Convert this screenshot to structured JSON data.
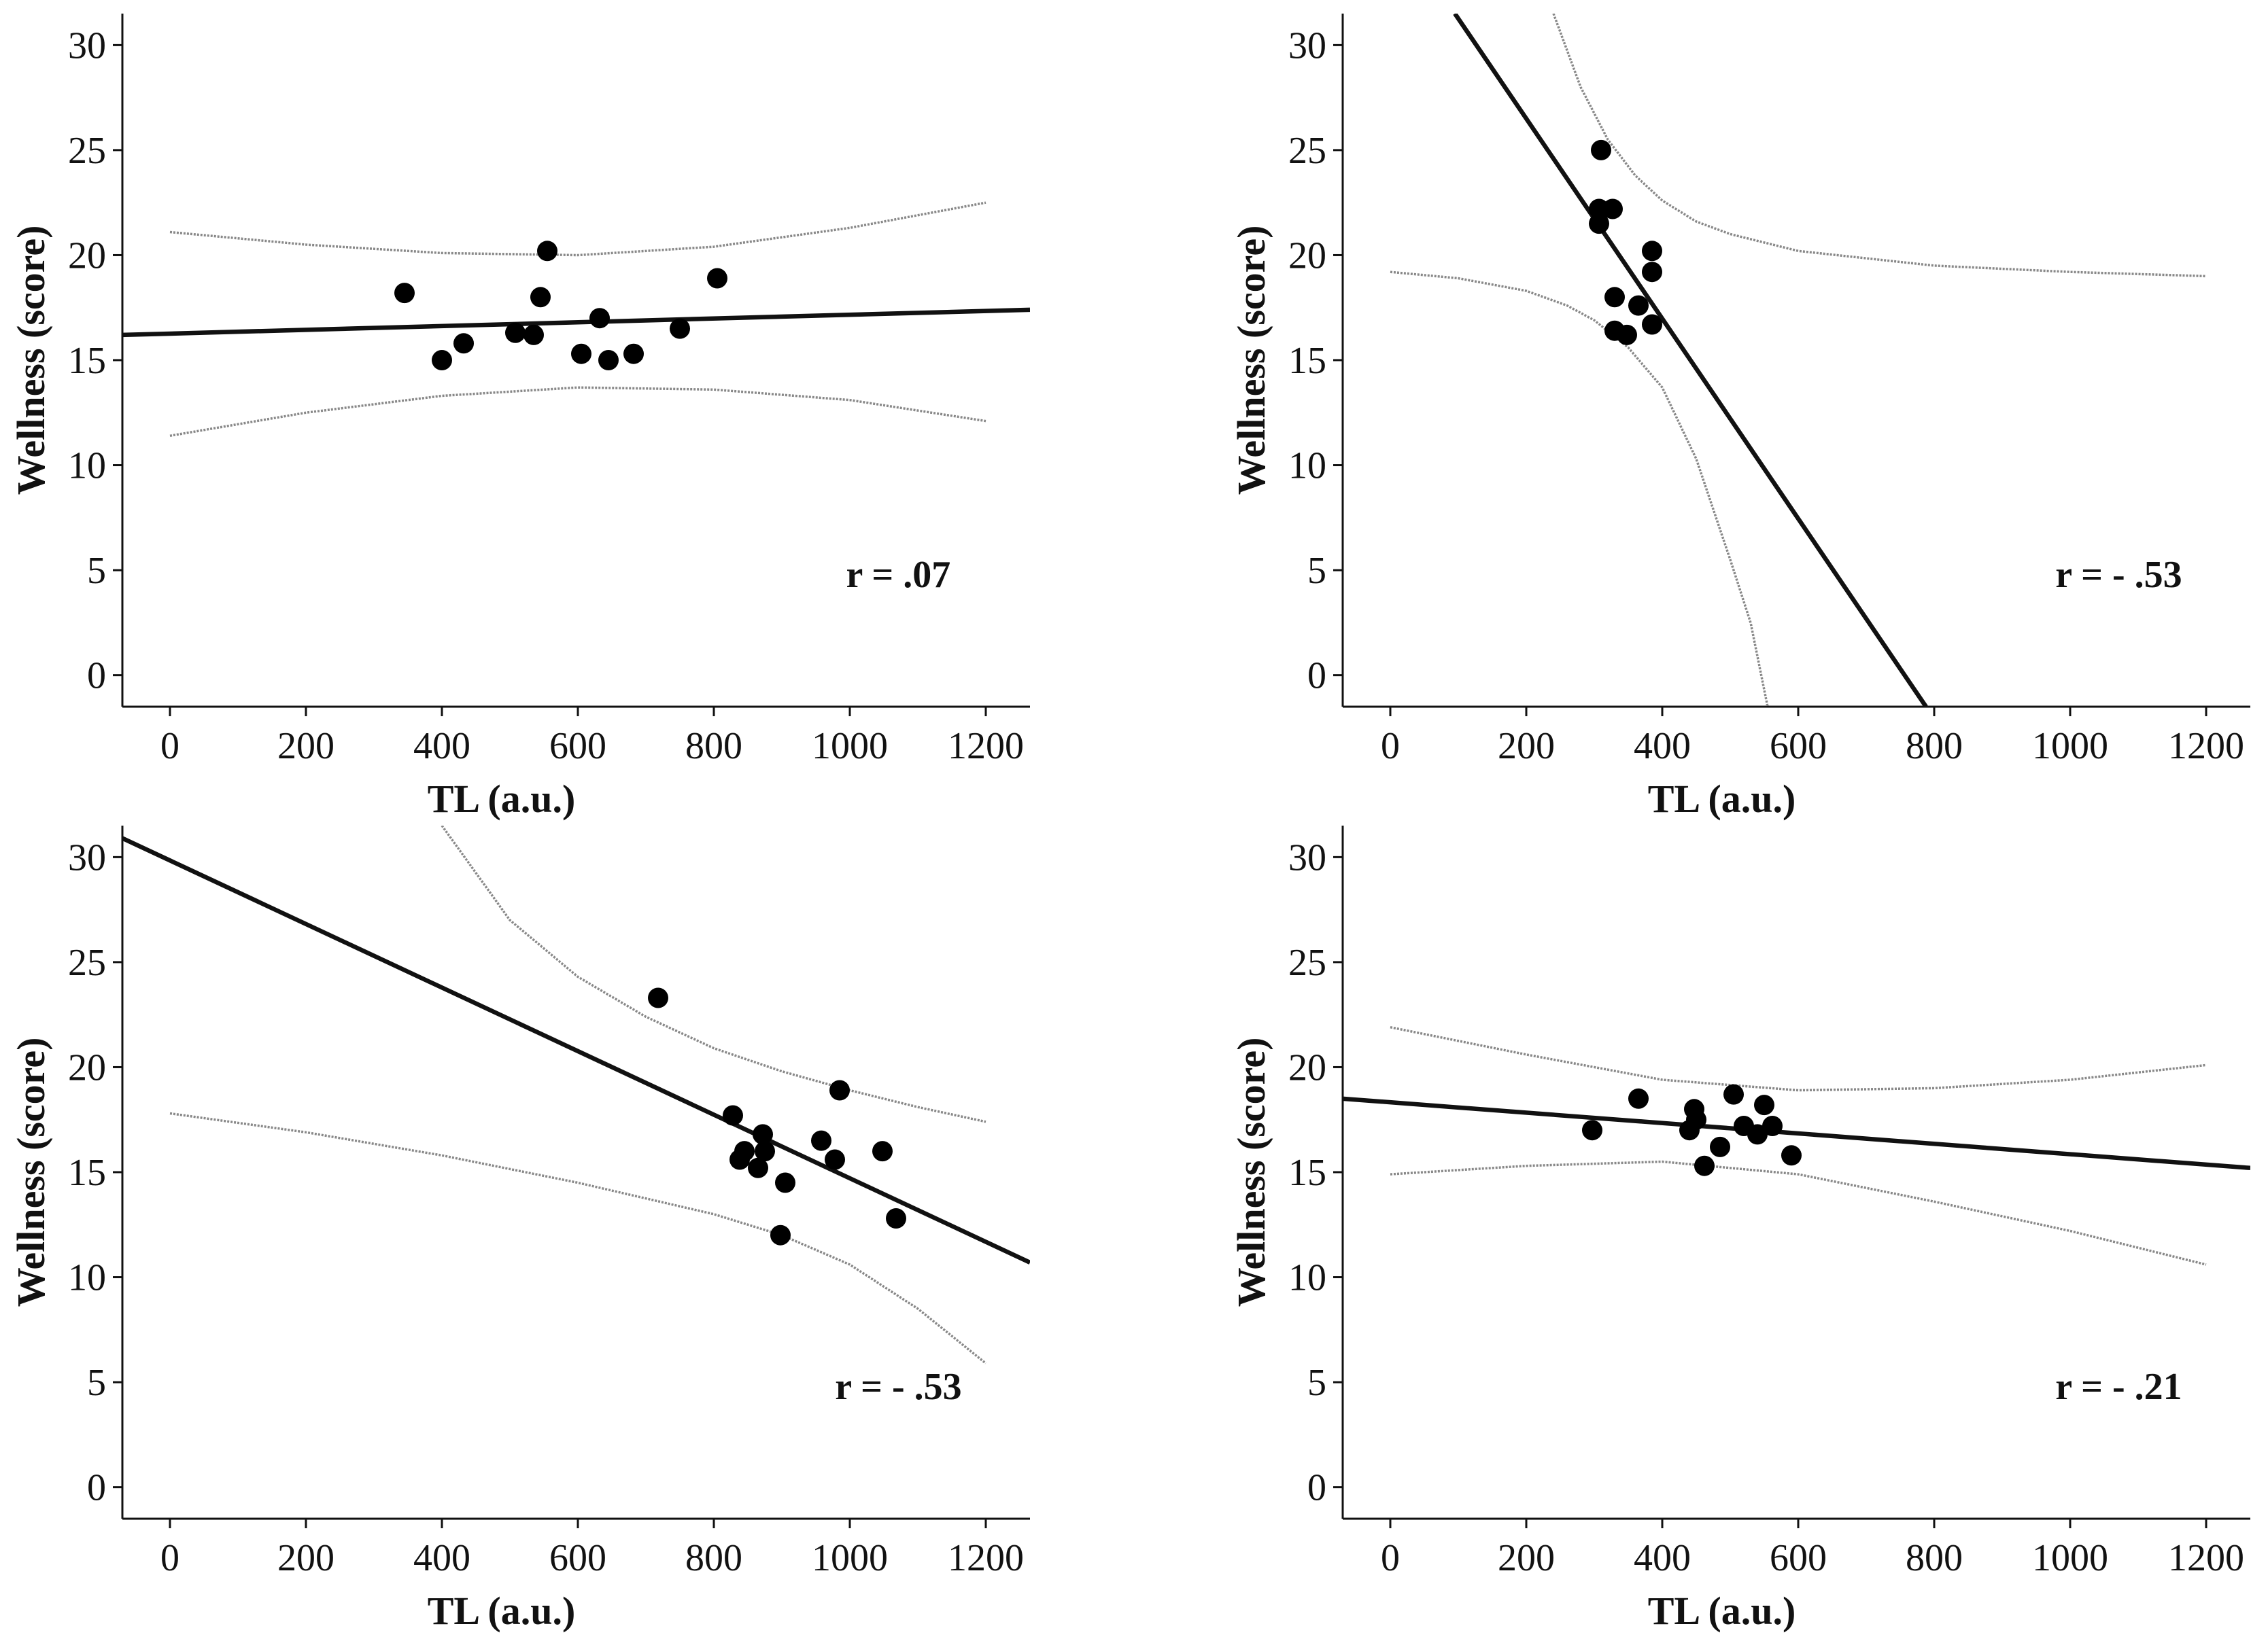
{
  "chart_data": [
    {
      "type": "scatter",
      "title": "",
      "xlabel": "TL (a.u.)",
      "ylabel": "Wellness (score)",
      "xlim": [
        -70,
        1265
      ],
      "ylim": [
        -1.5,
        31.5
      ],
      "xticks": [
        0,
        200,
        400,
        600,
        800,
        1000,
        1200
      ],
      "yticks": [
        0,
        5,
        10,
        15,
        20,
        25,
        30
      ],
      "r_label": "r = .07",
      "points": [
        [
          345,
          18.2
        ],
        [
          400,
          15.0
        ],
        [
          432,
          15.8
        ],
        [
          508,
          16.3
        ],
        [
          535,
          16.2
        ],
        [
          545,
          18.0
        ],
        [
          555,
          20.2
        ],
        [
          605,
          15.3
        ],
        [
          632,
          17.0
        ],
        [
          645,
          15.0
        ],
        [
          682,
          15.3
        ],
        [
          750,
          16.5
        ],
        [
          805,
          18.9
        ]
      ],
      "fit_line": {
        "x": [
          -70,
          1265
        ],
        "y": [
          16.2,
          17.4
        ]
      },
      "ci_band": {
        "upper": [
          [
            0,
            21.1
          ],
          [
            200,
            20.5
          ],
          [
            400,
            20.1
          ],
          [
            600,
            20.0
          ],
          [
            800,
            20.4
          ],
          [
            1000,
            21.3
          ],
          [
            1200,
            22.5
          ]
        ],
        "lower": [
          [
            0,
            11.4
          ],
          [
            200,
            12.5
          ],
          [
            400,
            13.3
          ],
          [
            600,
            13.7
          ],
          [
            800,
            13.6
          ],
          [
            1000,
            13.1
          ],
          [
            1200,
            12.1
          ]
        ]
      }
    },
    {
      "type": "scatter",
      "title": "",
      "xlabel": "TL (a.u.)",
      "ylabel": "Wellness (score)",
      "xlim": [
        -70,
        1265
      ],
      "ylim": [
        -1.5,
        31.5
      ],
      "xticks": [
        0,
        200,
        400,
        600,
        800,
        1000,
        1200
      ],
      "yticks": [
        0,
        5,
        10,
        15,
        20,
        25,
        30
      ],
      "r_label": "r = - .53",
      "points": [
        [
          310,
          25.0
        ],
        [
          307,
          22.2
        ],
        [
          327,
          22.2
        ],
        [
          307,
          21.5
        ],
        [
          385,
          20.2
        ],
        [
          385,
          19.2
        ],
        [
          330,
          18.0
        ],
        [
          365,
          17.6
        ],
        [
          385,
          16.7
        ],
        [
          330,
          16.4
        ],
        [
          348,
          16.2
        ]
      ],
      "fit_line": {
        "x": [
          95,
          788
        ],
        "y": [
          31.5,
          -1.5
        ]
      },
      "ci_band": {
        "upper": [
          [
            240,
            31.5
          ],
          [
            280,
            28.0
          ],
          [
            320,
            25.5
          ],
          [
            360,
            23.8
          ],
          [
            400,
            22.6
          ],
          [
            450,
            21.6
          ],
          [
            500,
            21.0
          ],
          [
            600,
            20.2
          ],
          [
            800,
            19.5
          ],
          [
            1000,
            19.2
          ],
          [
            1200,
            19.0
          ]
        ],
        "lower": [
          [
            0,
            19.2
          ],
          [
            100,
            18.9
          ],
          [
            200,
            18.3
          ],
          [
            260,
            17.6
          ],
          [
            300,
            16.9
          ],
          [
            350,
            15.6
          ],
          [
            400,
            13.7
          ],
          [
            450,
            10.3
          ],
          [
            500,
            5.5
          ],
          [
            530,
            2.5
          ],
          [
            555,
            -1.5
          ]
        ]
      }
    },
    {
      "type": "scatter",
      "title": "",
      "xlabel": "TL (a.u.)",
      "ylabel": "Wellness (score)",
      "xlim": [
        -70,
        1265
      ],
      "ylim": [
        -1.5,
        31.5
      ],
      "xticks": [
        0,
        200,
        400,
        600,
        800,
        1000,
        1200
      ],
      "yticks": [
        0,
        5,
        10,
        15,
        20,
        25,
        30
      ],
      "r_label": "r = - .53",
      "points": [
        [
          718,
          23.3
        ],
        [
          828,
          17.7
        ],
        [
          872,
          16.8
        ],
        [
          838,
          15.6
        ],
        [
          845,
          16.0
        ],
        [
          875,
          16.0
        ],
        [
          865,
          15.2
        ],
        [
          905,
          14.5
        ],
        [
          958,
          16.5
        ],
        [
          978,
          15.6
        ],
        [
          985,
          18.9
        ],
        [
          1048,
          16.0
        ],
        [
          1068,
          12.8
        ],
        [
          898,
          12.0
        ]
      ],
      "fit_line": {
        "x": [
          -70,
          1265
        ],
        "y": [
          30.9,
          10.7
        ]
      },
      "ci_band": {
        "upper": [
          [
            400,
            31.5
          ],
          [
            500,
            27.0
          ],
          [
            600,
            24.3
          ],
          [
            700,
            22.4
          ],
          [
            800,
            20.9
          ],
          [
            900,
            19.8
          ],
          [
            1000,
            18.9
          ],
          [
            1100,
            18.1
          ],
          [
            1200,
            17.4
          ]
        ],
        "lower": [
          [
            0,
            17.8
          ],
          [
            200,
            16.9
          ],
          [
            400,
            15.8
          ],
          [
            600,
            14.5
          ],
          [
            800,
            13.0
          ],
          [
            900,
            12.0
          ],
          [
            1000,
            10.6
          ],
          [
            1100,
            8.5
          ],
          [
            1200,
            5.9
          ]
        ]
      }
    },
    {
      "type": "scatter",
      "title": "",
      "xlabel": "TL (a.u.)",
      "ylabel": "Wellness (score)",
      "xlim": [
        -70,
        1265
      ],
      "ylim": [
        -1.5,
        31.5
      ],
      "xticks": [
        0,
        200,
        400,
        600,
        800,
        1000,
        1200
      ],
      "yticks": [
        0,
        5,
        10,
        15,
        20,
        25,
        30
      ],
      "r_label": "r = - .21",
      "points": [
        [
          297,
          17.0
        ],
        [
          365,
          18.5
        ],
        [
          440,
          17.0
        ],
        [
          447,
          18.0
        ],
        [
          450,
          17.5
        ],
        [
          462,
          15.3
        ],
        [
          485,
          16.2
        ],
        [
          505,
          18.7
        ],
        [
          520,
          17.2
        ],
        [
          540,
          16.8
        ],
        [
          550,
          18.2
        ],
        [
          562,
          17.2
        ],
        [
          590,
          15.8
        ]
      ],
      "fit_line": {
        "x": [
          -70,
          1265
        ],
        "y": [
          18.5,
          15.2
        ]
      },
      "ci_band": {
        "upper": [
          [
            0,
            21.9
          ],
          [
            200,
            20.6
          ],
          [
            400,
            19.4
          ],
          [
            600,
            18.9
          ],
          [
            800,
            19.0
          ],
          [
            1000,
            19.4
          ],
          [
            1200,
            20.1
          ]
        ],
        "lower": [
          [
            0,
            14.9
          ],
          [
            200,
            15.3
          ],
          [
            400,
            15.5
          ],
          [
            600,
            14.9
          ],
          [
            800,
            13.6
          ],
          [
            1000,
            12.2
          ],
          [
            1200,
            10.6
          ]
        ]
      }
    }
  ]
}
